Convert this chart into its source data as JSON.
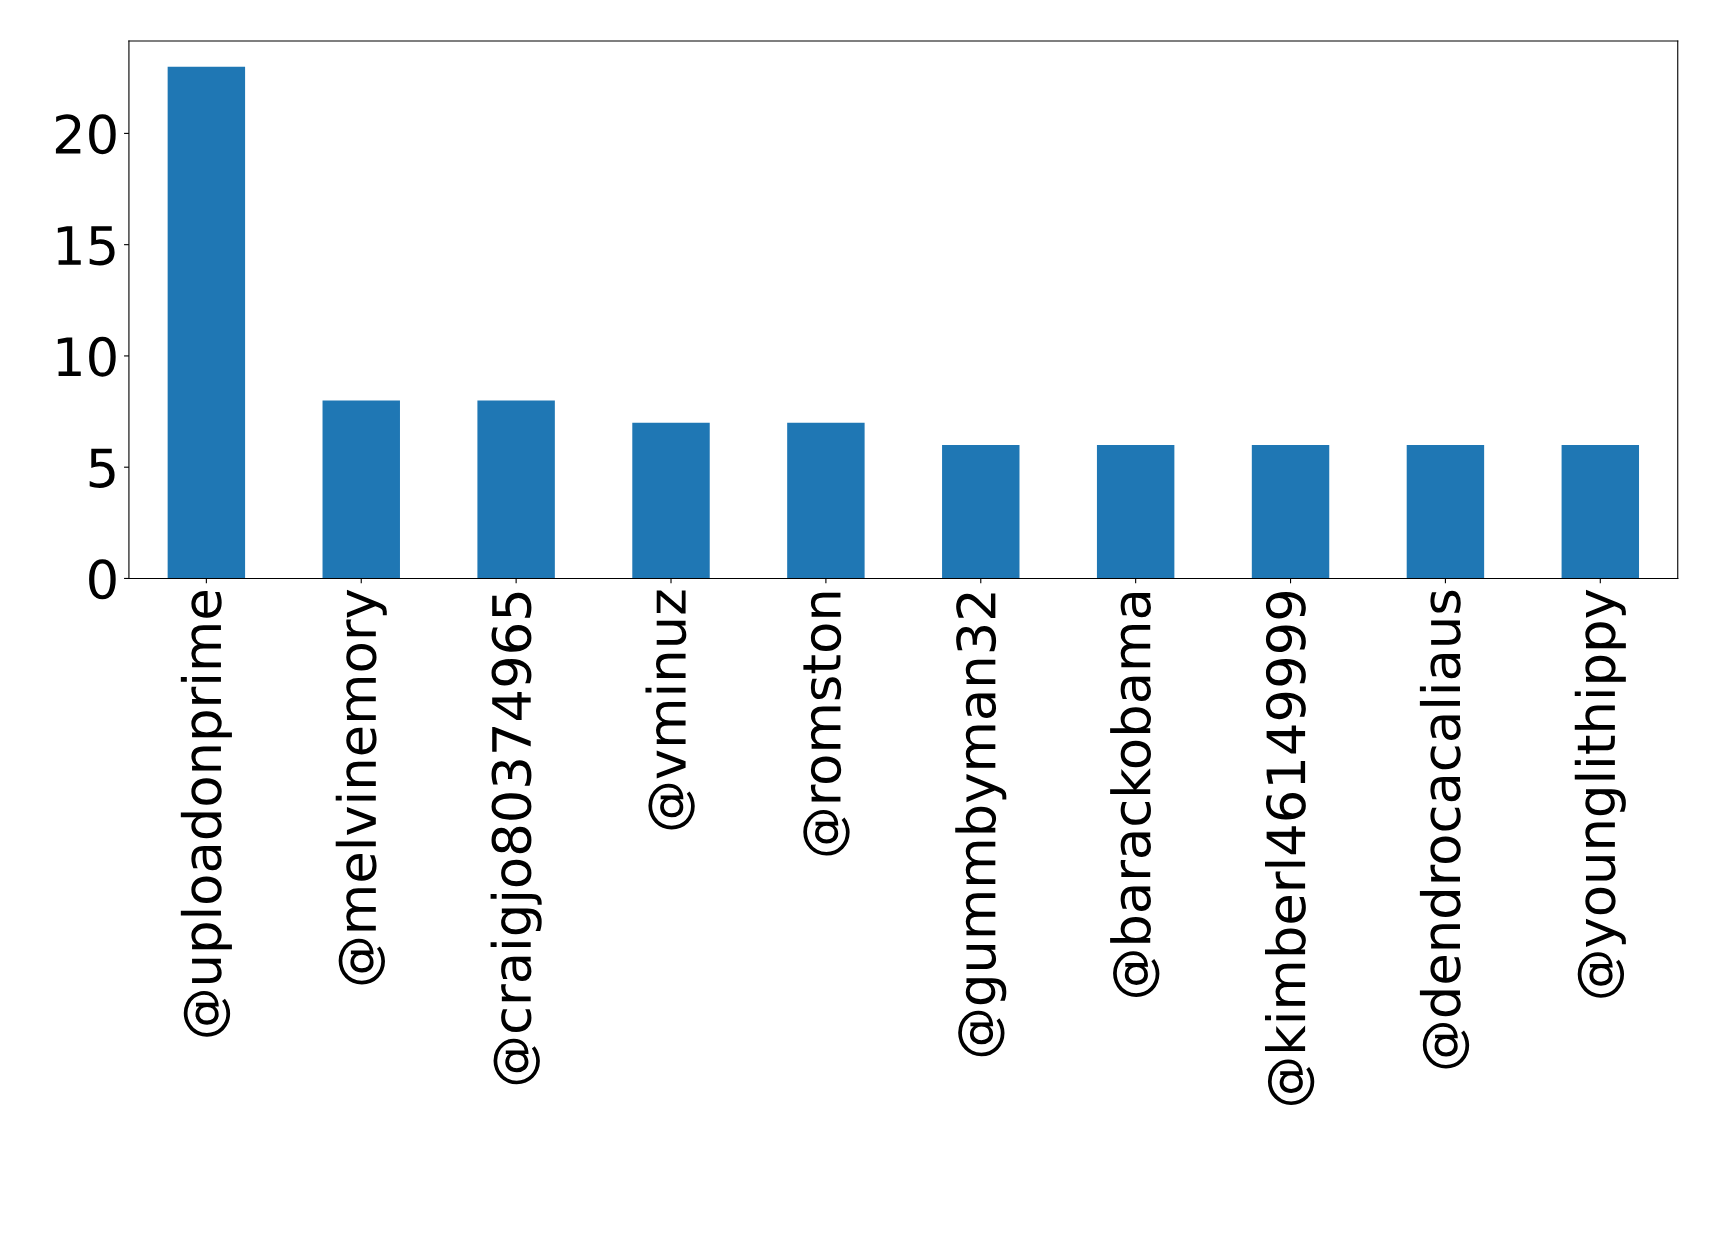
{
  "chart_data": {
    "type": "bar",
    "categories": [
      "@uploadonprime",
      "@melvinemory",
      "@craigjo80374965",
      "@vminuz",
      "@romston",
      "@gummbyman32",
      "@barackobama",
      "@kimberl46149999",
      "@dendrocacaliaus",
      "@younglithippy"
    ],
    "values": [
      23,
      8,
      8,
      7,
      7,
      6,
      6,
      6,
      6,
      6
    ],
    "color": "#1f77b4",
    "ylim": [
      0,
      24.15
    ],
    "yticks": [
      0,
      5,
      10,
      15,
      20
    ],
    "grid": false
  }
}
